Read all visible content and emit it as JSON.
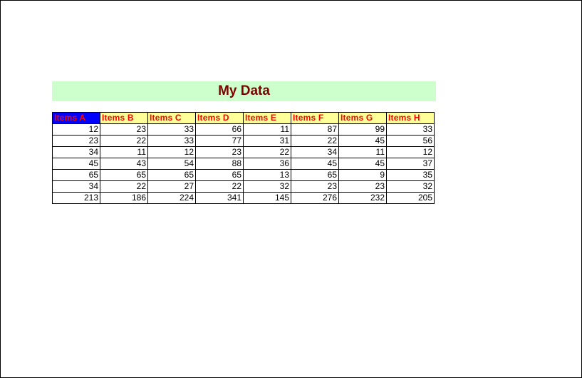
{
  "title": "My Data",
  "colors": {
    "title_bg": "#ccffcc",
    "title_text": "#800000",
    "header_bg": "#ffff99",
    "header_text": "#ff0000",
    "selected_header_bg": "#0000ff"
  },
  "table": {
    "selected_column": 0,
    "headers": [
      "Items A",
      "Items B",
      "Items C",
      "Items D",
      "Items E",
      "Items F",
      "Items G",
      "Items H"
    ],
    "rows": [
      [
        "12",
        "23",
        "33",
        "66",
        "11",
        "87",
        "99",
        "33"
      ],
      [
        "23",
        "22",
        "33",
        "77",
        "31",
        "22",
        "45",
        "56"
      ],
      [
        "34",
        "11",
        "12",
        "23",
        "22",
        "34",
        "11",
        "12"
      ],
      [
        "45",
        "43",
        "54",
        "88",
        "36",
        "45",
        "45",
        "37"
      ],
      [
        "65",
        "65",
        "65",
        "65",
        "13",
        "65",
        "9",
        "35"
      ],
      [
        "34",
        "22",
        "27",
        "22",
        "32",
        "23",
        "23",
        "32"
      ],
      [
        "213",
        "186",
        "224",
        "341",
        "145",
        "276",
        "232",
        "205"
      ]
    ]
  }
}
